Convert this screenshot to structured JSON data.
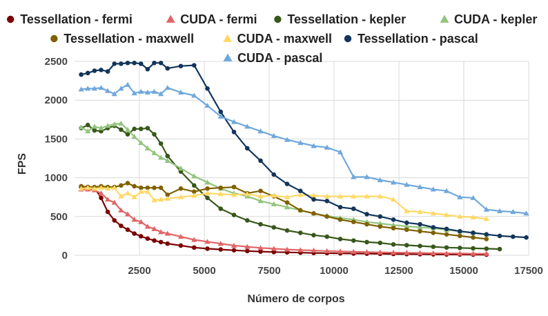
{
  "chart_data": {
    "type": "line",
    "xlabel": "Número de corpos",
    "ylabel": "FPS",
    "xlim": [
      0,
      17500
    ],
    "ylim": [
      0,
      2500
    ],
    "xticks": [
      2500,
      5000,
      7500,
      10000,
      12500,
      15000,
      17500
    ],
    "yticks": [
      0,
      500,
      1000,
      1500,
      2000,
      2500
    ],
    "grid": true,
    "legend_position": "top",
    "series": [
      {
        "name": "Tessellation - fermi",
        "color": "#7b0000",
        "marker": "circle",
        "x": [
          256,
          512,
          768,
          1024,
          1280,
          1536,
          1792,
          2048,
          2304,
          2560,
          2816,
          3072,
          3328,
          3584,
          4096,
          4608,
          5120,
          5632,
          6144,
          6656,
          7168,
          7680,
          8192,
          8704,
          9216,
          9728,
          10240,
          10752,
          11264,
          11776,
          12288,
          12800,
          13312,
          13824,
          14336,
          14848,
          15360,
          15872
        ],
        "y": [
          880,
          880,
          870,
          740,
          560,
          450,
          380,
          330,
          280,
          245,
          215,
          190,
          170,
          150,
          125,
          100,
          85,
          75,
          65,
          55,
          48,
          42,
          38,
          34,
          30,
          28,
          25,
          23,
          21,
          19,
          17,
          15,
          14,
          12,
          11,
          10,
          9,
          8
        ]
      },
      {
        "name": "CUDA - fermi",
        "color": "#e06666",
        "marker": "triangle",
        "x": [
          256,
          512,
          768,
          1024,
          1280,
          1536,
          1792,
          2048,
          2304,
          2560,
          2816,
          3072,
          3328,
          3584,
          4096,
          4608,
          5120,
          5632,
          6144,
          6656,
          7168,
          7680,
          8192,
          8704,
          9216,
          9728,
          10240,
          10752,
          11264,
          11776,
          12288,
          12800,
          13312,
          13824,
          14336,
          14848,
          15360,
          15872
        ],
        "y": [
          850,
          850,
          840,
          800,
          720,
          680,
          580,
          530,
          460,
          430,
          370,
          340,
          300,
          280,
          240,
          200,
          175,
          150,
          125,
          110,
          95,
          85,
          75,
          68,
          62,
          55,
          50,
          46,
          42,
          38,
          35,
          32,
          30,
          27,
          25,
          23,
          21,
          20
        ]
      },
      {
        "name": "Tessellation - kepler",
        "color": "#38571a",
        "marker": "circle",
        "x": [
          256,
          512,
          768,
          1024,
          1280,
          1536,
          1792,
          2048,
          2304,
          2560,
          2816,
          3072,
          3328,
          3584,
          4096,
          4608,
          5120,
          5632,
          6144,
          6656,
          7168,
          7680,
          8192,
          8704,
          9216,
          9728,
          10240,
          10752,
          11264,
          11776,
          12288,
          12800,
          13312,
          13824,
          14336,
          14848,
          15360,
          15872,
          16384
        ],
        "y": [
          1640,
          1680,
          1610,
          1600,
          1640,
          1670,
          1620,
          1560,
          1630,
          1630,
          1640,
          1560,
          1440,
          1280,
          1080,
          900,
          740,
          600,
          520,
          450,
          400,
          360,
          320,
          290,
          260,
          240,
          210,
          190,
          170,
          160,
          140,
          130,
          120,
          110,
          100,
          95,
          90,
          85,
          80
        ]
      },
      {
        "name": "CUDA - kepler",
        "color": "#93c47d",
        "marker": "triangle",
        "x": [
          256,
          512,
          768,
          1024,
          1280,
          1536,
          1792,
          2048,
          2304,
          2560,
          2816,
          3072,
          3328,
          3584,
          4096,
          4608,
          5120,
          5632,
          6144,
          6656,
          7168,
          7680,
          8192,
          8704,
          9216,
          9728,
          10240,
          10752,
          11264,
          11776,
          12288,
          12800,
          13312,
          13824,
          14336,
          14848,
          15360,
          15872
        ],
        "y": [
          1650,
          1600,
          1660,
          1640,
          1670,
          1690,
          1700,
          1620,
          1530,
          1450,
          1380,
          1320,
          1260,
          1220,
          1120,
          1020,
          940,
          860,
          800,
          760,
          700,
          660,
          620,
          580,
          540,
          510,
          480,
          460,
          430,
          410,
          390,
          375,
          360,
          350,
          330,
          310,
          290,
          270
        ]
      },
      {
        "name": "Tessellation - maxwell",
        "color": "#7f6000",
        "marker": "circle",
        "x": [
          256,
          512,
          768,
          1024,
          1280,
          1536,
          1792,
          2048,
          2304,
          2560,
          2816,
          3072,
          3328,
          3584,
          4096,
          4608,
          5120,
          5632,
          6144,
          6656,
          7168,
          7680,
          8192,
          8704,
          9216,
          9728,
          10240,
          10752,
          11264,
          11776,
          12288,
          12800,
          13312,
          13824,
          14336,
          14848,
          15360,
          15872
        ],
        "y": [
          890,
          880,
          880,
          890,
          880,
          880,
          900,
          930,
          890,
          870,
          870,
          870,
          870,
          780,
          860,
          820,
          860,
          870,
          880,
          800,
          830,
          760,
          680,
          580,
          540,
          500,
          460,
          430,
          400,
          370,
          350,
          330,
          310,
          290,
          270,
          250,
          230,
          210
        ]
      },
      {
        "name": "CUDA - maxwell",
        "color": "#ffd966",
        "marker": "triangle",
        "x": [
          256,
          512,
          768,
          1024,
          1280,
          1536,
          1792,
          2048,
          2304,
          2560,
          2816,
          3072,
          3328,
          3584,
          4096,
          4608,
          5120,
          5632,
          6144,
          6656,
          7168,
          7680,
          8192,
          8704,
          9216,
          9728,
          10240,
          10752,
          11264,
          11776,
          12288,
          12800,
          13312,
          13824,
          14336,
          14848,
          15360,
          15872
        ],
        "y": [
          860,
          870,
          860,
          870,
          860,
          870,
          760,
          800,
          750,
          820,
          820,
          710,
          720,
          730,
          750,
          770,
          800,
          790,
          780,
          790,
          760,
          770,
          750,
          780,
          770,
          760,
          760,
          760,
          760,
          760,
          720,
          570,
          560,
          540,
          520,
          500,
          490,
          470
        ]
      },
      {
        "name": "Tessellation - pascal",
        "color": "#12355b",
        "marker": "circle",
        "x": [
          256,
          512,
          768,
          1024,
          1280,
          1536,
          1792,
          2048,
          2304,
          2560,
          2816,
          3072,
          3328,
          3584,
          4096,
          4608,
          5120,
          5632,
          6144,
          6656,
          7168,
          7680,
          8192,
          8704,
          9216,
          9728,
          10240,
          10752,
          11264,
          11776,
          12288,
          12800,
          13312,
          13824,
          14336,
          14848,
          15360,
          15872,
          16384,
          16896,
          17408
        ],
        "y": [
          2330,
          2350,
          2380,
          2390,
          2370,
          2470,
          2470,
          2480,
          2480,
          2470,
          2400,
          2480,
          2480,
          2410,
          2440,
          2450,
          2150,
          1850,
          1590,
          1380,
          1220,
          1040,
          920,
          830,
          720,
          700,
          620,
          600,
          530,
          500,
          460,
          420,
          400,
          360,
          340,
          310,
          290,
          270,
          250,
          240,
          230
        ]
      },
      {
        "name": "CUDA - pascal",
        "color": "#6fa8dc",
        "marker": "triangle",
        "x": [
          256,
          512,
          768,
          1024,
          1280,
          1536,
          1792,
          2048,
          2304,
          2560,
          2816,
          3072,
          3328,
          3584,
          4096,
          4608,
          5120,
          5632,
          6144,
          6656,
          7168,
          7680,
          8192,
          8704,
          9216,
          9728,
          10240,
          10752,
          11264,
          11776,
          12288,
          12800,
          13312,
          13824,
          14336,
          14848,
          15360,
          15872,
          16384,
          16896,
          17408
        ],
        "y": [
          2140,
          2150,
          2150,
          2160,
          2120,
          2080,
          2150,
          2200,
          2090,
          2110,
          2100,
          2110,
          2080,
          2160,
          2100,
          2060,
          1930,
          1790,
          1720,
          1660,
          1600,
          1540,
          1490,
          1450,
          1410,
          1390,
          1330,
          1010,
          1010,
          970,
          940,
          910,
          880,
          850,
          830,
          750,
          740,
          590,
          570,
          560,
          540
        ]
      }
    ]
  }
}
